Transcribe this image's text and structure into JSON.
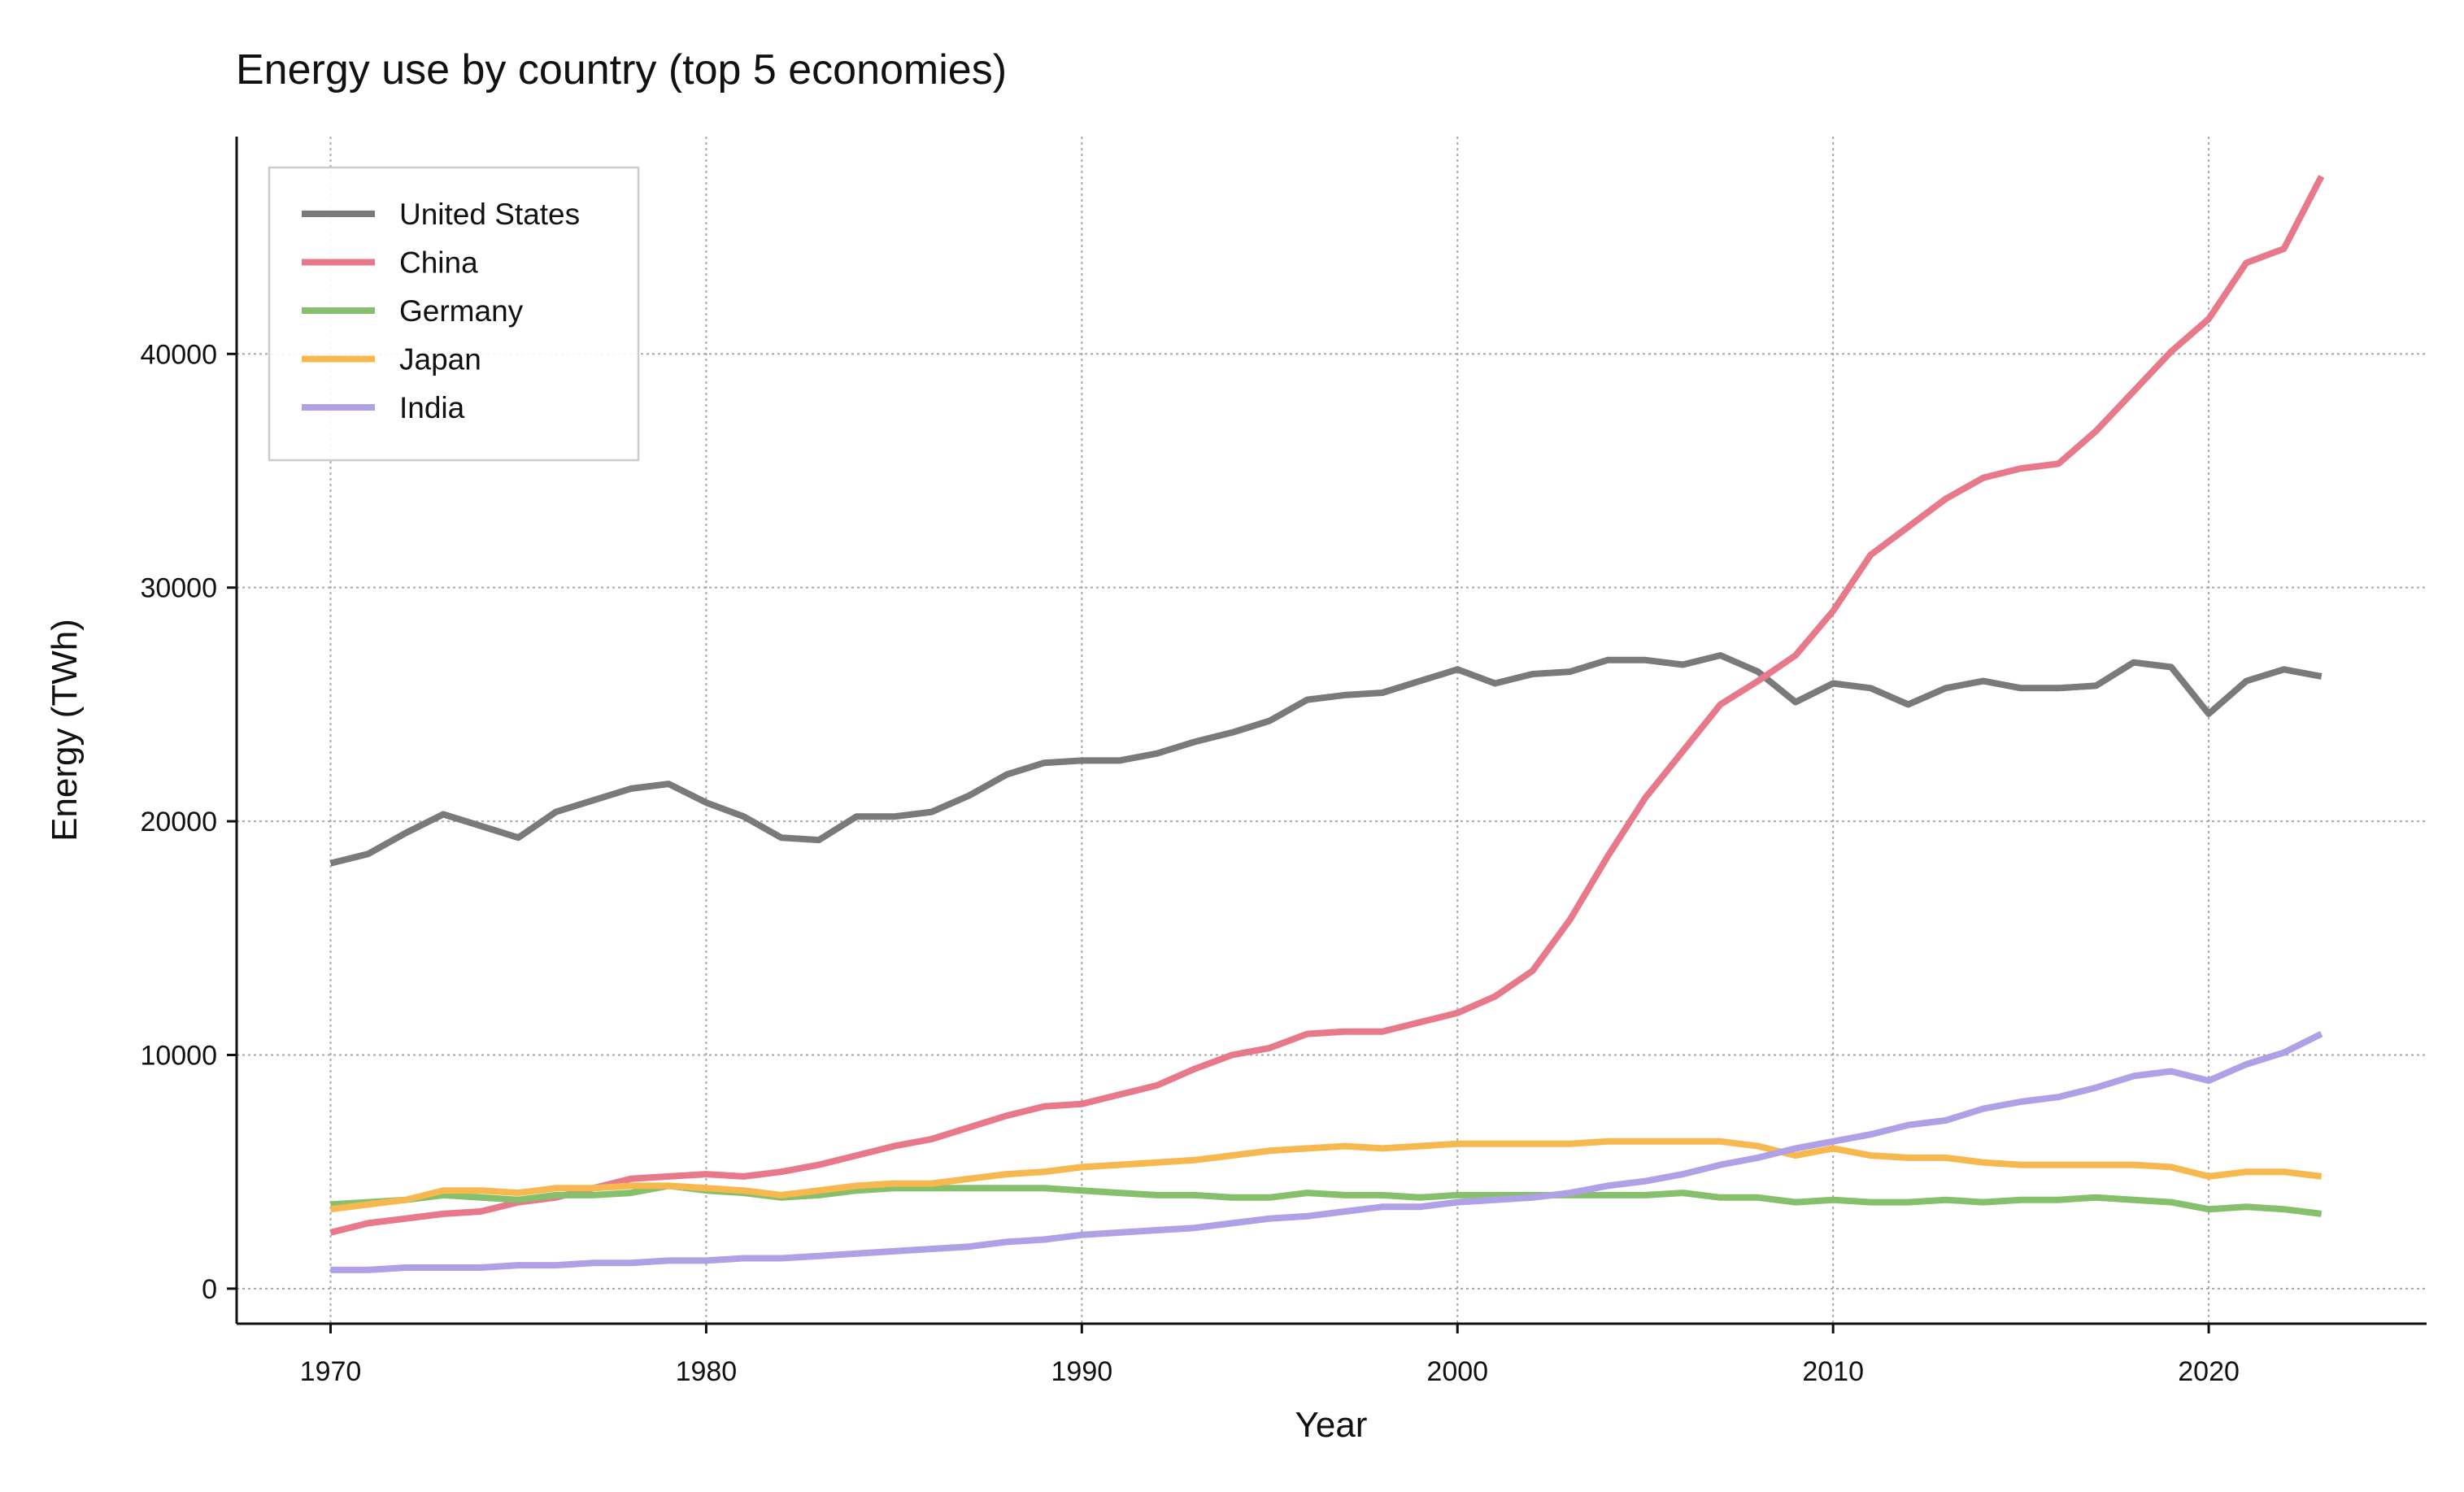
{
  "chart_data": {
    "type": "line",
    "title": "Energy use by country (top 5 economies)",
    "xlabel": "Year",
    "ylabel": "Energy (TWh)",
    "xlim": [
      1967.5,
      2025.8
    ],
    "ylim": [
      -1500,
      49300
    ],
    "xticks": [
      1970,
      1980,
      1990,
      2000,
      2010,
      2020
    ],
    "yticks": [
      0,
      10000,
      20000,
      30000,
      40000
    ],
    "grid": true,
    "legend_position": "top-left",
    "x": [
      1970,
      1971,
      1972,
      1973,
      1974,
      1975,
      1976,
      1977,
      1978,
      1979,
      1980,
      1981,
      1982,
      1983,
      1984,
      1985,
      1986,
      1987,
      1988,
      1989,
      1990,
      1991,
      1992,
      1993,
      1994,
      1995,
      1996,
      1997,
      1998,
      1999,
      2000,
      2001,
      2002,
      2003,
      2004,
      2005,
      2006,
      2007,
      2008,
      2009,
      2010,
      2011,
      2012,
      2013,
      2014,
      2015,
      2016,
      2017,
      2018,
      2019,
      2020,
      2021,
      2022,
      2023
    ],
    "series": [
      {
        "name": "United States",
        "color": "#7a7a7a",
        "values": [
          18200,
          18600,
          19500,
          20300,
          19800,
          19300,
          20400,
          20900,
          21400,
          21600,
          20800,
          20200,
          19300,
          19200,
          20200,
          20200,
          20400,
          21100,
          22000,
          22500,
          22600,
          22600,
          22900,
          23400,
          23800,
          24300,
          25200,
          25400,
          25500,
          26000,
          26500,
          25900,
          26300,
          26400,
          26900,
          26900,
          26700,
          27100,
          26400,
          25100,
          25900,
          25700,
          25000,
          25700,
          26000,
          25700,
          25700,
          25800,
          26800,
          26600,
          24600,
          26000,
          26500,
          26200
        ]
      },
      {
        "name": "China",
        "color": "#e8798a",
        "values": [
          2400,
          2800,
          3000,
          3200,
          3300,
          3700,
          3900,
          4300,
          4700,
          4800,
          4900,
          4800,
          5000,
          5300,
          5700,
          6100,
          6400,
          6900,
          7400,
          7800,
          7900,
          8300,
          8700,
          9400,
          10000,
          10300,
          10900,
          11000,
          11000,
          11400,
          11800,
          12500,
          13600,
          15800,
          18500,
          21000,
          23000,
          25000,
          26000,
          27100,
          29000,
          31400,
          32600,
          33800,
          34700,
          35100,
          35300,
          36700,
          38400,
          40100,
          41500,
          43900,
          44500,
          47600
        ]
      },
      {
        "name": "Germany",
        "color": "#86c06c",
        "values": [
          3600,
          3700,
          3800,
          4000,
          3900,
          3800,
          4000,
          4000,
          4100,
          4400,
          4200,
          4100,
          3900,
          4000,
          4200,
          4300,
          4300,
          4300,
          4300,
          4300,
          4200,
          4100,
          4000,
          4000,
          3900,
          3900,
          4100,
          4000,
          4000,
          3900,
          4000,
          4000,
          4000,
          4000,
          4000,
          4000,
          4100,
          3900,
          3900,
          3700,
          3800,
          3700,
          3700,
          3800,
          3700,
          3800,
          3800,
          3900,
          3800,
          3700,
          3400,
          3500,
          3400,
          3200
        ]
      },
      {
        "name": "Japan",
        "color": "#f7b84f",
        "values": [
          3400,
          3600,
          3800,
          4200,
          4200,
          4100,
          4300,
          4300,
          4400,
          4400,
          4300,
          4200,
          4000,
          4200,
          4400,
          4500,
          4500,
          4700,
          4900,
          5000,
          5200,
          5300,
          5400,
          5500,
          5700,
          5900,
          6000,
          6100,
          6000,
          6100,
          6200,
          6200,
          6200,
          6200,
          6300,
          6300,
          6300,
          6300,
          6100,
          5700,
          6000,
          5700,
          5600,
          5600,
          5400,
          5300,
          5300,
          5300,
          5300,
          5200,
          4800,
          5000,
          5000,
          4800
        ]
      },
      {
        "name": "India",
        "color": "#b0a0e6",
        "values": [
          800,
          800,
          900,
          900,
          900,
          1000,
          1000,
          1100,
          1100,
          1200,
          1200,
          1300,
          1300,
          1400,
          1500,
          1600,
          1700,
          1800,
          2000,
          2100,
          2300,
          2400,
          2500,
          2600,
          2800,
          3000,
          3100,
          3300,
          3500,
          3500,
          3700,
          3800,
          3900,
          4100,
          4400,
          4600,
          4900,
          5300,
          5600,
          6000,
          6300,
          6600,
          7000,
          7200,
          7700,
          8000,
          8200,
          8600,
          9100,
          9300,
          8900,
          9600,
          10100,
          10900
        ]
      }
    ]
  }
}
